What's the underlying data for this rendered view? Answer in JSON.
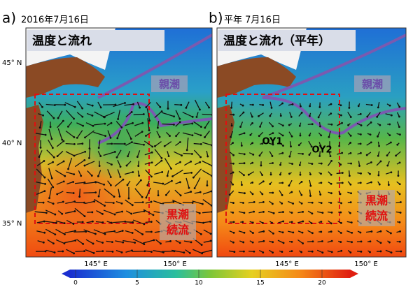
{
  "panels": [
    {
      "label": "a)",
      "date": "2016年7月16日",
      "title": "温度と流れ",
      "oyashio": "親潮",
      "kuroshio": [
        "黒潮",
        "続流"
      ]
    },
    {
      "label": "b)",
      "date": "平年  7月16日",
      "title": "温度と流れ（平年）",
      "oyashio": "親潮",
      "kuroshio": [
        "黒潮",
        "続流"
      ],
      "points": [
        "OY1",
        "OY2"
      ]
    }
  ],
  "lat_labels": [
    "45° N",
    "40° N",
    "35° N"
  ],
  "lon_labels": [
    "145° E",
    "150° E"
  ],
  "colorbar": {
    "ticks": [
      0,
      5,
      10,
      15,
      20
    ]
  }
}
